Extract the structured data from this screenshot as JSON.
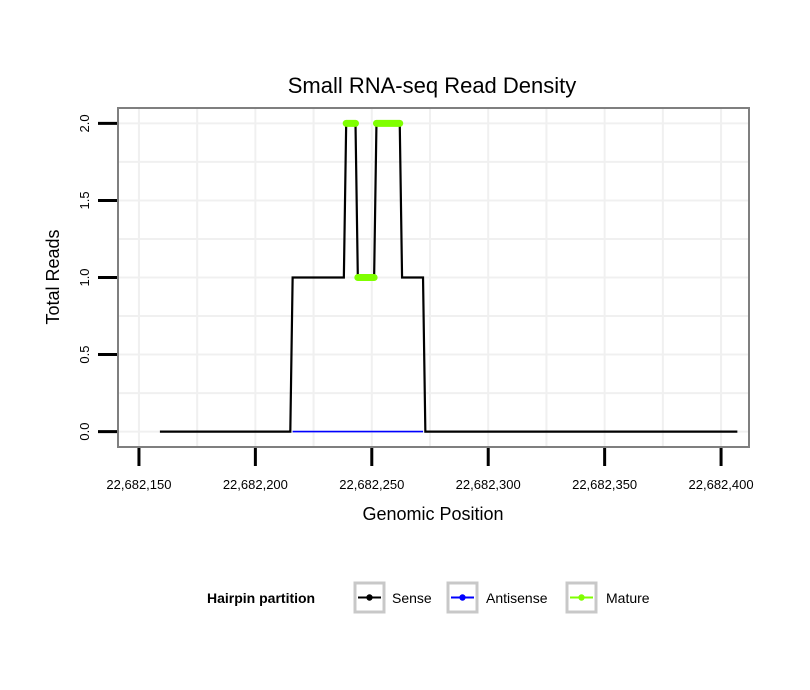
{
  "chart_data": {
    "type": "line",
    "title": "Small RNA-seq Read Density",
    "xlabel": "Genomic Position",
    "ylabel": "Total Reads",
    "xlim": [
      22682141,
      22682412
    ],
    "ylim": [
      -0.1,
      2.1
    ],
    "x_ticks": [
      22682150,
      22682200,
      22682250,
      22682300,
      22682350,
      22682400
    ],
    "x_tick_labels": [
      "22,682,150",
      "22,682,200",
      "22,682,250",
      "22,682,300",
      "22,682,350",
      "22,682,400"
    ],
    "y_ticks": [
      0,
      0.5,
      1,
      1.5,
      2
    ],
    "y_tick_labels": [
      "0.0",
      "0.5",
      "1.0",
      "1.5",
      "2.0"
    ],
    "grid": true,
    "legend": {
      "title": "Hairpin partition",
      "position": "bottom",
      "entries": [
        "Sense",
        "Antisense",
        "Mature"
      ]
    },
    "series": [
      {
        "name": "Sense",
        "color": "#000000",
        "points": [
          [
            22682159,
            0
          ],
          [
            22682215,
            0
          ],
          [
            22682216,
            1
          ],
          [
            22682238,
            1
          ],
          [
            22682239,
            2
          ],
          [
            22682243,
            2
          ],
          [
            22682244,
            1
          ],
          [
            22682251,
            1
          ],
          [
            22682252,
            2
          ],
          [
            22682262,
            2
          ],
          [
            22682263,
            1
          ],
          [
            22682272,
            1
          ],
          [
            22682273,
            0
          ],
          [
            22682407,
            0
          ]
        ]
      },
      {
        "name": "Antisense",
        "color": "#0000ff",
        "points": [
          [
            22682216,
            0
          ],
          [
            22682272,
            0
          ]
        ]
      },
      {
        "name": "Mature",
        "color": "#7fff00",
        "segments": [
          [
            [
              22682239,
              2
            ],
            [
              22682243,
              2
            ]
          ],
          [
            [
              22682244,
              1
            ],
            [
              22682251,
              1
            ]
          ],
          [
            [
              22682252,
              2
            ],
            [
              22682262,
              2
            ]
          ]
        ]
      }
    ]
  }
}
